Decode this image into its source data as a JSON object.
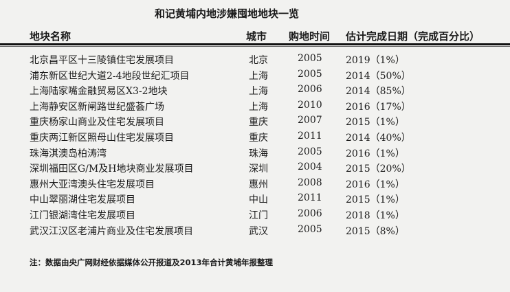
{
  "title": "和记黄埔内地涉嫌囤地地块一览",
  "headers": [
    "地块名称",
    "城市",
    "购地时间",
    "估计完成日期（完成百分比）"
  ],
  "rows": [
    [
      "北京昌平区十三陵镇住宅发展项目",
      "北京",
      "2005",
      "2019（1%）"
    ],
    [
      "浦东新区世纪大道2-4地段世纪汇项目",
      "上海",
      "2005",
      "2014（50%）"
    ],
    [
      "上海陆家嘴金融贸易区X3-2地块",
      "上海",
      "2006",
      "2014（85%）"
    ],
    [
      "上海静安区新闸路世纪盛荟广场",
      "上海",
      "2010",
      "2016（17%）"
    ],
    [
      "重庆杨家山商业及住宅发展项目",
      "重庆",
      "2007",
      "2015（1%）"
    ],
    [
      "重庆两江新区照母山住宅发展项目",
      "重庆",
      "2011",
      "2014（40%）"
    ],
    [
      "珠海淇澳岛柏涛湾",
      "珠海",
      "2005",
      "2016（1%）"
    ],
    [
      "深圳福田区G/M及H地块商业发展项目",
      "深圳",
      "2004",
      "2015（20%）"
    ],
    [
      "惠州大亚湾澳头住宅发展项目",
      "惠州",
      "2008",
      "2016（1%）"
    ],
    [
      "中山翠丽湖住宅发展项目",
      "中山",
      "2011",
      "2015（1%）"
    ],
    [
      "江门银湖湾住宅发展项目",
      "江门",
      "2006",
      "2018（1%）"
    ],
    [
      "武汉江汉区老浦片商业及住宅发展项目",
      "武汉",
      "2005",
      "2015（8%）"
    ]
  ],
  "note": "注：数据由央广网财经依据媒体公开报道及2013年合计黄埔年报整理"
}
